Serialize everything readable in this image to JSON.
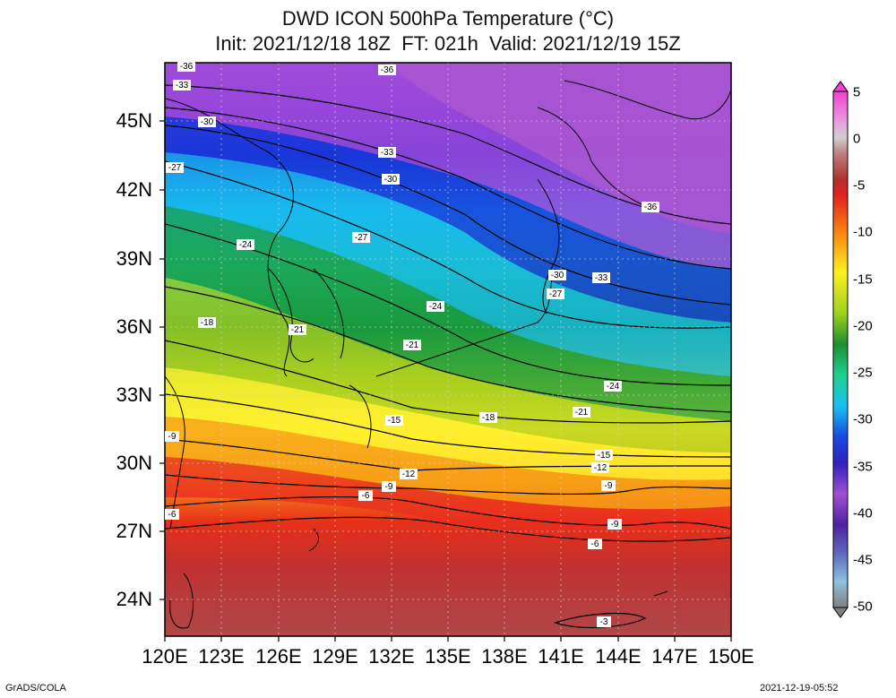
{
  "title_line1": "DWD ICON 500hPa Temperature (°C)",
  "title_line2": "Init: 2021/12/18 18Z  FT: 021h  Valid: 2021/12/19 15Z",
  "lat_labels": [
    "45N",
    "42N",
    "39N",
    "36N",
    "33N",
    "30N",
    "27N",
    "24N"
  ],
  "lon_labels": [
    "120E",
    "123E",
    "126E",
    "129E",
    "132E",
    "135E",
    "138E",
    "141E",
    "144E",
    "147E",
    "150E"
  ],
  "colorbar_labels": [
    "5",
    "0",
    "-5",
    "-10",
    "-15",
    "-20",
    "-25",
    "-30",
    "-35",
    "-40",
    "-45",
    "-50"
  ],
  "contour_labels": [
    "-36",
    "-33",
    "-30",
    "-27",
    "-24",
    "-21",
    "-18",
    "-15",
    "-12",
    "-9",
    "-6",
    "-3"
  ],
  "footer_left": "GrADS/COLA",
  "footer_right": "2021-12-19-05:52",
  "colors": {
    "warm": "#b33a3a",
    "red": "#e82a1a",
    "orange": "#f78a10",
    "yellow": "#fff230",
    "green": "#1aa038",
    "cyan": "#18c8e6",
    "blue": "#1845e0",
    "purple": "#a050d0"
  }
}
